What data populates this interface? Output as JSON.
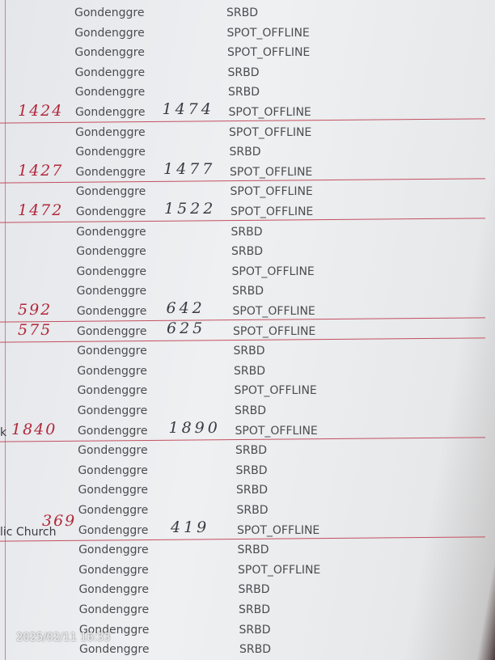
{
  "rows": [
    {
      "site": "Gondenggre",
      "status": "SRBD"
    },
    {
      "site": "Gondenggre",
      "status": "SPOT_OFFLINE"
    },
    {
      "site": "Gondenggre",
      "status": "SPOT_OFFLINE"
    },
    {
      "site": "Gondenggre",
      "status": "SRBD"
    },
    {
      "site": "Gondenggre",
      "status": "SRBD"
    },
    {
      "site": "Gondenggre",
      "status": "SPOT_OFFLINE",
      "before": "1424",
      "after": "1474"
    },
    {
      "site": "Gondenggre",
      "status": "SPOT_OFFLINE"
    },
    {
      "site": "Gondenggre",
      "status": "SRBD"
    },
    {
      "site": "Gondenggre",
      "status": "SPOT_OFFLINE",
      "before": "1427",
      "after": "1477"
    },
    {
      "site": "Gondenggre",
      "status": "SPOT_OFFLINE"
    },
    {
      "site": "Gondenggre",
      "status": "SPOT_OFFLINE",
      "before": "1472",
      "after": "1522"
    },
    {
      "site": "Gondenggre",
      "status": "SRBD"
    },
    {
      "site": "Gondenggre",
      "status": "SRBD"
    },
    {
      "site": "Gondenggre",
      "status": "SPOT_OFFLINE"
    },
    {
      "site": "Gondenggre",
      "status": "SRBD"
    },
    {
      "site": "Gondenggre",
      "status": "SPOT_OFFLINE",
      "before": "592",
      "after": "642"
    },
    {
      "site": "Gondenggre",
      "status": "SPOT_OFFLINE",
      "before": "575",
      "after": "625"
    },
    {
      "site": "Gondenggre",
      "status": "SRBD"
    },
    {
      "site": "Gondenggre",
      "status": "SRBD"
    },
    {
      "site": "Gondenggre",
      "status": "SPOT_OFFLINE"
    },
    {
      "site": "Gondenggre",
      "status": "SRBD"
    },
    {
      "site": "Gondenggre",
      "status": "SPOT_OFFLINE",
      "place": "k",
      "before": "1840",
      "after": "1890"
    },
    {
      "site": "Gondenggre",
      "status": "SRBD"
    },
    {
      "site": "Gondenggre",
      "status": "SRBD"
    },
    {
      "site": "Gondenggre",
      "status": "SRBD"
    },
    {
      "site": "Gondenggre",
      "status": "SRBD"
    },
    {
      "site": "Gondenggre",
      "status": "SPOT_OFFLINE",
      "place": "lic Church",
      "before": "369",
      "after": "419"
    },
    {
      "site": "Gondenggre",
      "status": "SRBD"
    },
    {
      "site": "Gondenggre",
      "status": "SPOT_OFFLINE"
    },
    {
      "site": "Gondenggre",
      "status": "SRBD"
    },
    {
      "site": "Gondenggre",
      "status": "SRBD"
    },
    {
      "site": "Gondenggre",
      "status": "SRBD"
    },
    {
      "site": "Gondenggre",
      "status": "SRBD"
    }
  ],
  "timestamp": "2025/02/11 16:33"
}
